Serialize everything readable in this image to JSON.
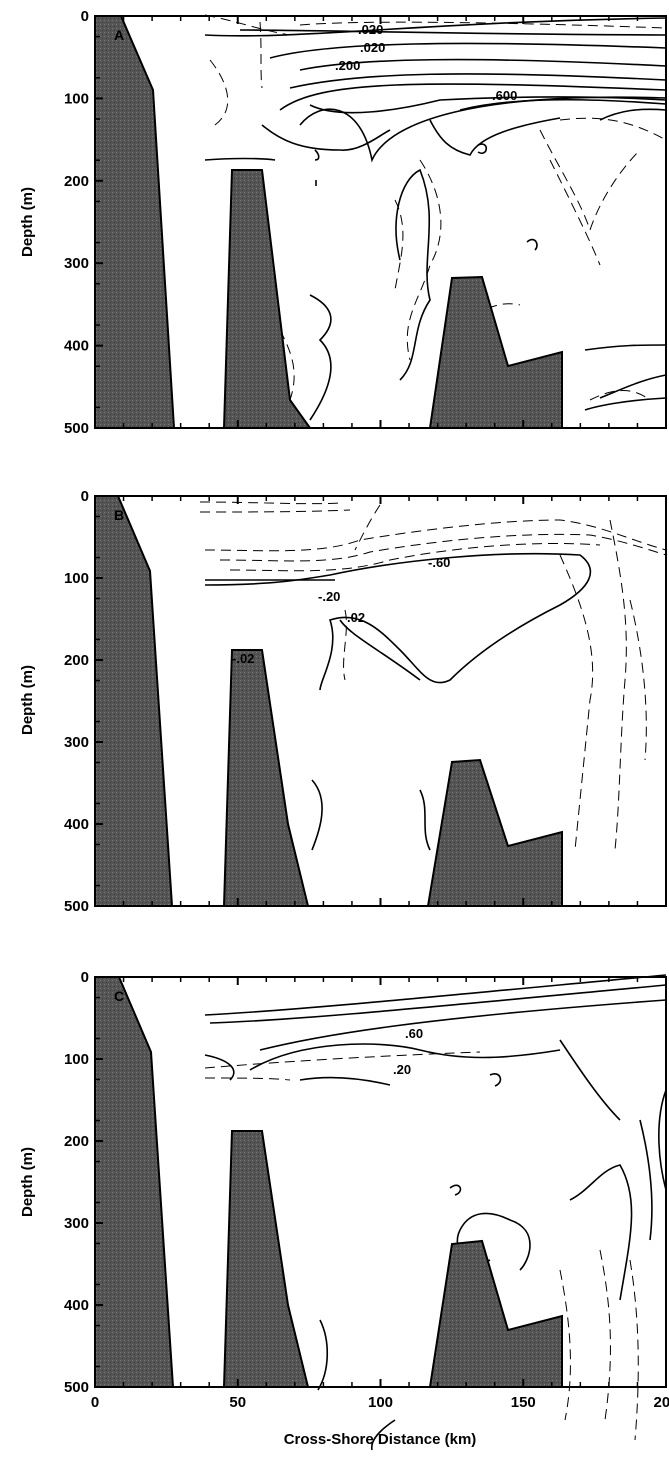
{
  "chart_data": [
    {
      "type": "contour",
      "panel_label": "A",
      "xlabel": "",
      "ylabel": "Depth (m)",
      "xlim": [
        0,
        200
      ],
      "ylim": [
        0,
        500
      ],
      "y_inverted": true,
      "y_ticks": [
        "0",
        "100",
        "200",
        "300",
        "400",
        "500"
      ],
      "x_ticks": [],
      "contour_labels": [
        ".020",
        ".020",
        ".200",
        ".600"
      ],
      "bathymetry_fill": "#555555"
    },
    {
      "type": "contour",
      "panel_label": "B",
      "xlabel": "",
      "ylabel": "Depth (m)",
      "xlim": [
        0,
        200
      ],
      "ylim": [
        0,
        500
      ],
      "y_inverted": true,
      "y_ticks": [
        "0",
        "100",
        "200",
        "300",
        "400",
        "500"
      ],
      "x_ticks": [],
      "contour_labels": [
        "-.60",
        "-.20",
        ".02",
        "-.02"
      ],
      "bathymetry_fill": "#555555"
    },
    {
      "type": "contour",
      "panel_label": "C",
      "xlabel": "Cross-Shore Distance (km)",
      "ylabel": "Depth (m)",
      "xlim": [
        0,
        200
      ],
      "ylim": [
        0,
        500
      ],
      "y_inverted": true,
      "y_ticks": [
        "0",
        "100",
        "200",
        "300",
        "400",
        "500"
      ],
      "x_ticks": [
        "0",
        "50",
        "100",
        "150",
        "200"
      ],
      "contour_labels": [
        ".60",
        ".20"
      ],
      "bathymetry_fill": "#555555"
    }
  ],
  "bathymetry_outline": {
    "units": "km / m",
    "pieces": [
      [
        [
          0,
          0
        ],
        [
          10,
          0
        ],
        [
          20,
          90
        ],
        [
          28,
          500
        ],
        [
          0,
          500
        ]
      ],
      [
        [
          47,
          500
        ],
        [
          50,
          190
        ],
        [
          58,
          190
        ],
        [
          70,
          400
        ],
        [
          78,
          500
        ]
      ],
      [
        [
          120,
          500
        ],
        [
          130,
          325
        ],
        [
          138,
          322
        ],
        [
          150,
          430
        ],
        [
          170,
          413
        ],
        [
          170,
          500
        ]
      ]
    ]
  }
}
